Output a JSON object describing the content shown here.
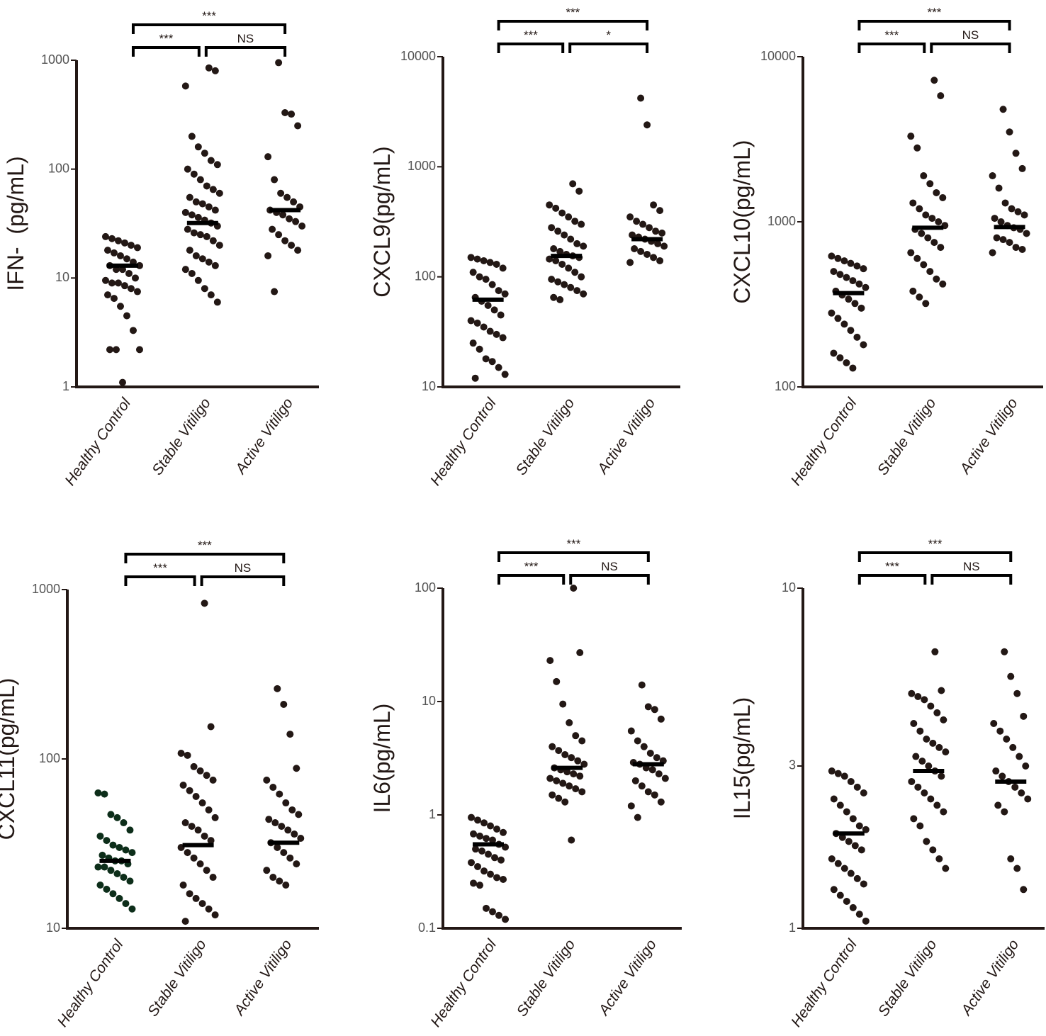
{
  "chart_data": [
    {
      "type": "strip",
      "y_label": "IFN-  (pg/mL)",
      "log_scale": true,
      "ylim": [
        1,
        1000
      ],
      "yticks": [
        1,
        10,
        100,
        1000
      ],
      "categories": [
        "Healthy Control",
        "Stable Vitiligo",
        "Active Vitiligo"
      ],
      "significance": {
        "overall": "***",
        "control_vs_stable": "***",
        "stable_vs_active": "NS"
      },
      "groups": [
        {
          "color": "#231815",
          "median": 13,
          "values": [
            24,
            23,
            22,
            21,
            20,
            19,
            18,
            17,
            16,
            15,
            14,
            13,
            13,
            12,
            12,
            11,
            10,
            9.5,
            9,
            9,
            8.5,
            8,
            7.5,
            7,
            6.5,
            5.5,
            4.5,
            3.3,
            2.2,
            2.2,
            2.2,
            1.1
          ]
        },
        {
          "color": "#231815",
          "median": 32,
          "values": [
            850,
            800,
            580,
            200,
            160,
            140,
            120,
            110,
            100,
            90,
            80,
            70,
            65,
            60,
            55,
            50,
            48,
            45,
            42,
            40,
            38,
            36,
            34,
            32,
            30,
            28,
            26,
            25,
            24,
            22,
            20,
            18,
            16,
            15,
            14,
            13,
            12,
            11,
            9.5,
            8,
            7,
            6
          ]
        },
        {
          "color": "#231815",
          "median": 42,
          "values": [
            950,
            330,
            320,
            250,
            130,
            80,
            60,
            55,
            50,
            45,
            42,
            40,
            38,
            35,
            33,
            30,
            28,
            25,
            22,
            20,
            18,
            16,
            7.5
          ]
        }
      ]
    },
    {
      "type": "strip",
      "y_label": "CXCL9(pg/mL)",
      "log_scale": true,
      "ylim": [
        10,
        10000
      ],
      "yticks": [
        10,
        100,
        1000,
        10000
      ],
      "categories": [
        "Healthy Control",
        "Stable Vitiligo",
        "Active Vitiligo"
      ],
      "significance": {
        "overall": "***",
        "control_vs_stable": "***",
        "stable_vs_active": "*"
      },
      "groups": [
        {
          "color": "#231815",
          "median": 62,
          "values": [
            150,
            145,
            140,
            135,
            130,
            120,
            110,
            100,
            95,
            85,
            75,
            70,
            65,
            60,
            55,
            50,
            45,
            40,
            38,
            35,
            32,
            30,
            28,
            25,
            22,
            18,
            17,
            15,
            13,
            12
          ]
        },
        {
          "color": "#231815",
          "median": 155,
          "values": [
            700,
            600,
            450,
            420,
            380,
            350,
            320,
            300,
            280,
            260,
            240,
            220,
            200,
            190,
            180,
            170,
            160,
            155,
            150,
            145,
            140,
            130,
            120,
            110,
            100,
            95,
            90,
            85,
            80,
            75,
            70,
            65,
            62
          ]
        },
        {
          "color": "#231815",
          "median": 220,
          "values": [
            4200,
            2400,
            450,
            400,
            350,
            320,
            300,
            280,
            260,
            250,
            240,
            230,
            220,
            210,
            200,
            190,
            180,
            170,
            160,
            150,
            140,
            135
          ]
        }
      ]
    },
    {
      "type": "strip",
      "y_label": "CXCL10(pg/mL)",
      "log_scale": true,
      "ylim": [
        100,
        10000
      ],
      "yticks": [
        100,
        1000,
        10000
      ],
      "categories": [
        "Healthy Control",
        "Stable Vitiligo",
        "Active Vitiligo"
      ],
      "significance": {
        "overall": "***",
        "control_vs_stable": "***",
        "stable_vs_active": "NS"
      },
      "groups": [
        {
          "color": "#231815",
          "median": 370,
          "values": [
            620,
            600,
            580,
            560,
            540,
            520,
            500,
            480,
            460,
            440,
            420,
            400,
            380,
            360,
            340,
            320,
            300,
            280,
            260,
            240,
            220,
            200,
            180,
            160,
            150,
            140,
            130
          ]
        },
        {
          "color": "#231815",
          "median": 920,
          "values": [
            7200,
            5800,
            3300,
            2800,
            1900,
            1700,
            1500,
            1400,
            1300,
            1200,
            1100,
            1050,
            1000,
            950,
            900,
            850,
            800,
            750,
            700,
            650,
            600,
            550,
            500,
            450,
            420,
            380,
            350,
            320
          ]
        },
        {
          "color": "#231815",
          "median": 930,
          "values": [
            4800,
            3500,
            2600,
            2100,
            1900,
            1600,
            1300,
            1200,
            1150,
            1100,
            1050,
            1000,
            950,
            920,
            900,
            850,
            800,
            780,
            750,
            700,
            680,
            650
          ]
        }
      ]
    },
    {
      "type": "strip",
      "y_label": "CXCL11(pg/mL)",
      "log_scale": true,
      "ylim": [
        10,
        1000
      ],
      "yticks": [
        10,
        100,
        1000
      ],
      "categories": [
        "Healthy Control",
        "Stable Vitiligo",
        "Active Vitiligo"
      ],
      "significance": {
        "overall": "***",
        "control_vs_stable": "***",
        "stable_vs_active": "NS"
      },
      "groups": [
        {
          "color": "#0d2e1a",
          "median": 25,
          "values": [
            63,
            62,
            47,
            45,
            42,
            38,
            35,
            33,
            31,
            30,
            29,
            28,
            27,
            26,
            25,
            25,
            24,
            23,
            23,
            22,
            21,
            20,
            19,
            18,
            17,
            16,
            15,
            14,
            13
          ]
        },
        {
          "color": "#231815",
          "median": 31,
          "values": [
            830,
            155,
            108,
            105,
            90,
            85,
            80,
            75,
            70,
            65,
            60,
            55,
            50,
            45,
            42,
            40,
            38,
            35,
            33,
            30,
            28,
            26,
            24,
            22,
            20,
            18,
            16,
            15,
            14,
            13,
            12,
            11
          ]
        },
        {
          "color": "#231815",
          "median": 32,
          "values": [
            260,
            210,
            140,
            88,
            75,
            68,
            62,
            55,
            50,
            47,
            44,
            42,
            40,
            38,
            36,
            34,
            32,
            30,
            28,
            26,
            24,
            22,
            20,
            19,
            18
          ]
        }
      ]
    },
    {
      "type": "strip",
      "y_label": "IL6(pg/mL)",
      "log_scale": true,
      "ylim": [
        0.1,
        100
      ],
      "yticks": [
        0.1,
        1,
        10,
        100
      ],
      "categories": [
        "Healthy Control",
        "Stable Vitiligo",
        "Active Vitiligo"
      ],
      "significance": {
        "overall": "***",
        "control_vs_stable": "***",
        "stable_vs_active": "NS"
      },
      "groups": [
        {
          "color": "#231815",
          "median": 0.55,
          "values": [
            0.95,
            0.9,
            0.85,
            0.8,
            0.75,
            0.7,
            0.68,
            0.65,
            0.62,
            0.6,
            0.55,
            0.52,
            0.5,
            0.48,
            0.45,
            0.42,
            0.4,
            0.38,
            0.35,
            0.32,
            0.3,
            0.28,
            0.27,
            0.25,
            0.24,
            0.15,
            0.14,
            0.13,
            0.12
          ]
        },
        {
          "color": "#231815",
          "median": 2.6,
          "values": [
            100,
            27,
            23,
            15,
            9.5,
            6.5,
            5,
            4.5,
            4,
            3.7,
            3.4,
            3.2,
            3,
            2.8,
            2.6,
            2.5,
            2.4,
            2.3,
            2.2,
            2.1,
            2,
            1.9,
            1.8,
            1.7,
            1.6,
            1.5,
            1.4,
            1.3,
            0.6
          ]
        },
        {
          "color": "#231815",
          "median": 2.8,
          "values": [
            14,
            9,
            8.5,
            7,
            5.5,
            4.5,
            4,
            3.5,
            3.2,
            3,
            2.9,
            2.8,
            2.6,
            2.5,
            2.3,
            2.1,
            2,
            1.8,
            1.6,
            1.5,
            1.3,
            1.2,
            0.95
          ]
        }
      ]
    },
    {
      "type": "strip",
      "y_label": "IL15(pg/mL)",
      "log_scale": true,
      "ylim": [
        1,
        10
      ],
      "yticks": [
        1,
        3,
        10
      ],
      "categories": [
        "Healthy Control",
        "Stable Vitiligo",
        "Active Vitiligo"
      ],
      "significance": {
        "overall": "***",
        "control_vs_stable": "***",
        "stable_vs_active": "NS"
      },
      "groups": [
        {
          "color": "#231815",
          "median": 1.9,
          "values": [
            2.9,
            2.85,
            2.8,
            2.7,
            2.6,
            2.5,
            2.4,
            2.3,
            2.2,
            2.1,
            2,
            1.95,
            1.9,
            1.85,
            1.8,
            1.75,
            1.7,
            1.6,
            1.55,
            1.5,
            1.45,
            1.4,
            1.35,
            1.3,
            1.25,
            1.2,
            1.15,
            1.1,
            1.05
          ]
        },
        {
          "color": "#231815",
          "median": 2.9,
          "values": [
            6.5,
            5,
            4.9,
            4.8,
            4.7,
            4.5,
            4.3,
            4.1,
            4,
            3.8,
            3.6,
            3.5,
            3.4,
            3.3,
            3.2,
            3.1,
            3,
            2.9,
            2.8,
            2.7,
            2.6,
            2.5,
            2.4,
            2.3,
            2.2,
            2.1,
            2,
            1.8,
            1.7,
            1.6,
            1.5
          ]
        },
        {
          "color": "#231815",
          "median": 2.7,
          "values": [
            6.5,
            5.5,
            4.9,
            4.2,
            4,
            3.8,
            3.6,
            3.4,
            3.2,
            3,
            2.9,
            2.8,
            2.7,
            2.6,
            2.5,
            2.4,
            2.3,
            2.2,
            1.6,
            1.5,
            1.3
          ]
        }
      ]
    }
  ]
}
